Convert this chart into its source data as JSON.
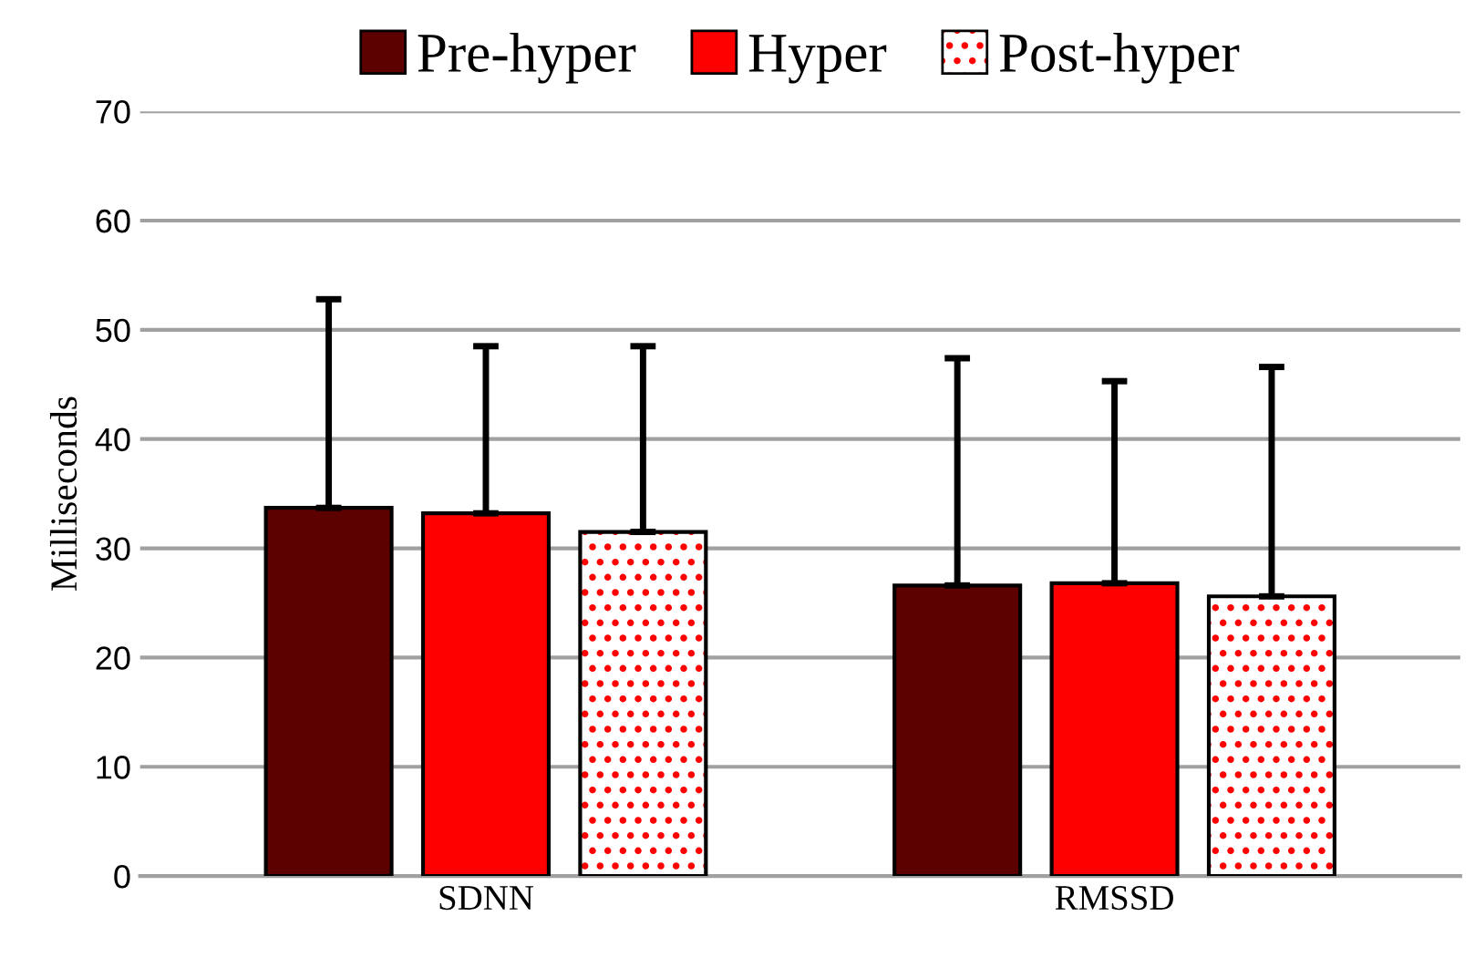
{
  "chart_data": {
    "type": "bar",
    "ylabel": "Milliseconds",
    "categories": [
      "SDNN",
      "RMSSD"
    ],
    "series": [
      {
        "name": "Pre-hyper",
        "color": "#5c0000",
        "values": [
          33.7,
          26.6
        ],
        "errors": [
          [
            33.7,
            52.8
          ],
          [
            26.6,
            47.4
          ]
        ]
      },
      {
        "name": "Hyper",
        "color": "#ff0000",
        "values": [
          33.2,
          26.8
        ],
        "errors": [
          [
            33.2,
            48.5
          ],
          [
            26.8,
            45.3
          ]
        ]
      },
      {
        "name": "Post-hyper",
        "color": "#ff0000",
        "values": [
          31.5,
          25.6
        ],
        "errors": [
          [
            31.5,
            48.5
          ],
          [
            25.6,
            46.6
          ]
        ]
      }
    ],
    "ylim": [
      0,
      70
    ],
    "yticks": [
      0,
      10,
      20,
      30,
      40,
      50,
      60,
      70
    ],
    "grid": "y",
    "legend": "top"
  }
}
